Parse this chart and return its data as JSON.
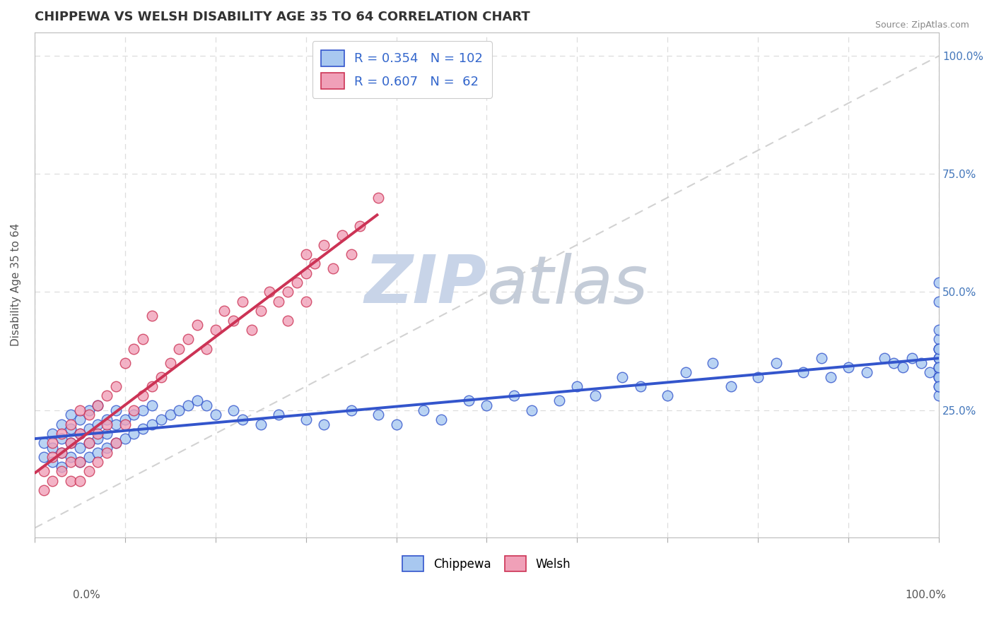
{
  "title": "CHIPPEWA VS WELSH DISABILITY AGE 35 TO 64 CORRELATION CHART",
  "source": "Source: ZipAtlas.com",
  "ylabel": "Disability Age 35 to 64",
  "xlim": [
    0.0,
    1.0
  ],
  "ylim": [
    -0.02,
    1.05
  ],
  "color_chippewa": "#A8C8F0",
  "color_welsh": "#F0A0B8",
  "color_trend_chippewa": "#3355CC",
  "color_trend_welsh": "#CC3355",
  "color_diagonal": "#C0C0C0",
  "title_color": "#333333",
  "legend_value_color": "#3366CC",
  "background_color": "#FFFFFF",
  "grid_color": "#DDDDDD",
  "watermark_color": "#C8D4E8",
  "chippewa_x": [
    0.01,
    0.01,
    0.02,
    0.02,
    0.02,
    0.03,
    0.03,
    0.03,
    0.03,
    0.04,
    0.04,
    0.04,
    0.04,
    0.05,
    0.05,
    0.05,
    0.05,
    0.06,
    0.06,
    0.06,
    0.06,
    0.07,
    0.07,
    0.07,
    0.07,
    0.08,
    0.08,
    0.08,
    0.09,
    0.09,
    0.09,
    0.1,
    0.1,
    0.11,
    0.11,
    0.12,
    0.12,
    0.13,
    0.13,
    0.14,
    0.15,
    0.16,
    0.17,
    0.18,
    0.19,
    0.2,
    0.22,
    0.23,
    0.25,
    0.27,
    0.3,
    0.32,
    0.35,
    0.38,
    0.4,
    0.43,
    0.45,
    0.48,
    0.5,
    0.53,
    0.55,
    0.58,
    0.6,
    0.62,
    0.65,
    0.67,
    0.7,
    0.72,
    0.75,
    0.77,
    0.8,
    0.82,
    0.85,
    0.87,
    0.88,
    0.9,
    0.92,
    0.94,
    0.95,
    0.96,
    0.97,
    0.98,
    0.99,
    1.0,
    1.0,
    1.0,
    1.0,
    1.0,
    1.0,
    1.0,
    1.0,
    1.0,
    1.0,
    1.0,
    1.0,
    1.0,
    1.0,
    1.0,
    1.0,
    1.0,
    1.0,
    1.0
  ],
  "chippewa_y": [
    0.15,
    0.18,
    0.14,
    0.17,
    0.2,
    0.13,
    0.16,
    0.19,
    0.22,
    0.15,
    0.18,
    0.21,
    0.24,
    0.14,
    0.17,
    0.2,
    0.23,
    0.15,
    0.18,
    0.21,
    0.25,
    0.16,
    0.19,
    0.22,
    0.26,
    0.17,
    0.2,
    0.23,
    0.18,
    0.22,
    0.25,
    0.19,
    0.23,
    0.2,
    0.24,
    0.21,
    0.25,
    0.22,
    0.26,
    0.23,
    0.24,
    0.25,
    0.26,
    0.27,
    0.26,
    0.24,
    0.25,
    0.23,
    0.22,
    0.24,
    0.23,
    0.22,
    0.25,
    0.24,
    0.22,
    0.25,
    0.23,
    0.27,
    0.26,
    0.28,
    0.25,
    0.27,
    0.3,
    0.28,
    0.32,
    0.3,
    0.28,
    0.33,
    0.35,
    0.3,
    0.32,
    0.35,
    0.33,
    0.36,
    0.32,
    0.34,
    0.33,
    0.36,
    0.35,
    0.34,
    0.36,
    0.35,
    0.33,
    0.28,
    0.32,
    0.36,
    0.3,
    0.34,
    0.38,
    0.32,
    0.36,
    0.4,
    0.34,
    0.38,
    0.32,
    0.36,
    0.48,
    0.52,
    0.3,
    0.34,
    0.38,
    0.42
  ],
  "welsh_x": [
    0.01,
    0.01,
    0.02,
    0.02,
    0.02,
    0.03,
    0.03,
    0.03,
    0.04,
    0.04,
    0.04,
    0.04,
    0.05,
    0.05,
    0.05,
    0.05,
    0.06,
    0.06,
    0.06,
    0.07,
    0.07,
    0.07,
    0.08,
    0.08,
    0.08,
    0.09,
    0.09,
    0.1,
    0.1,
    0.11,
    0.11,
    0.12,
    0.12,
    0.13,
    0.13,
    0.14,
    0.15,
    0.16,
    0.17,
    0.18,
    0.19,
    0.2,
    0.21,
    0.22,
    0.23,
    0.24,
    0.25,
    0.26,
    0.27,
    0.28,
    0.28,
    0.29,
    0.3,
    0.3,
    0.3,
    0.31,
    0.32,
    0.33,
    0.34,
    0.35,
    0.36,
    0.38
  ],
  "welsh_y": [
    0.08,
    0.12,
    0.1,
    0.15,
    0.18,
    0.12,
    0.16,
    0.2,
    0.1,
    0.14,
    0.18,
    0.22,
    0.1,
    0.14,
    0.2,
    0.25,
    0.12,
    0.18,
    0.24,
    0.14,
    0.2,
    0.26,
    0.16,
    0.22,
    0.28,
    0.18,
    0.3,
    0.22,
    0.35,
    0.25,
    0.38,
    0.28,
    0.4,
    0.3,
    0.45,
    0.32,
    0.35,
    0.38,
    0.4,
    0.43,
    0.38,
    0.42,
    0.46,
    0.44,
    0.48,
    0.42,
    0.46,
    0.5,
    0.48,
    0.44,
    0.5,
    0.52,
    0.48,
    0.54,
    0.58,
    0.56,
    0.6,
    0.55,
    0.62,
    0.58,
    0.64,
    0.7
  ]
}
